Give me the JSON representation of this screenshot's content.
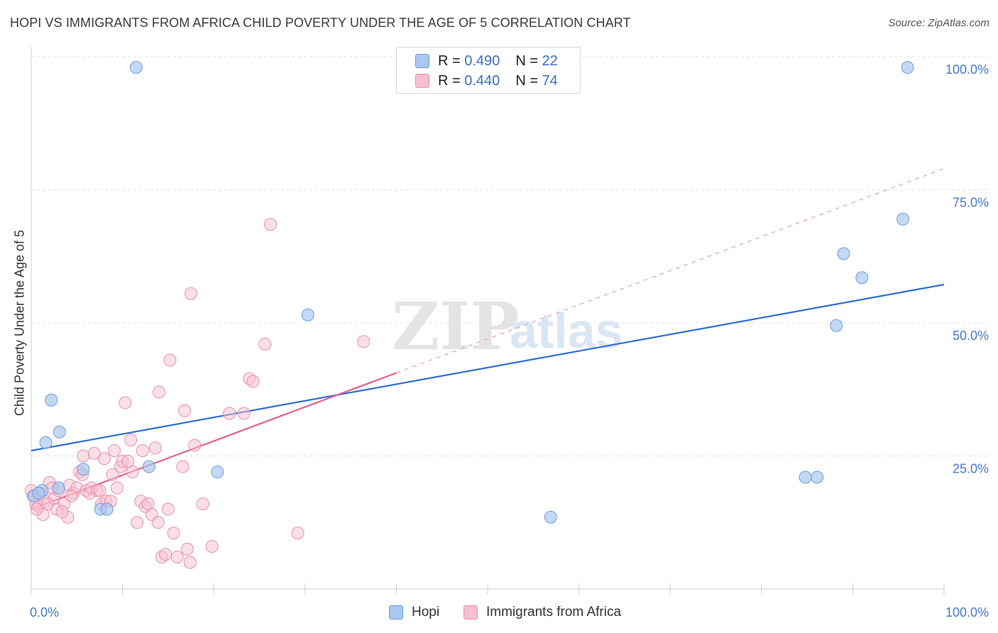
{
  "title": "HOPI VS IMMIGRANTS FROM AFRICA CHILD POVERTY UNDER THE AGE OF 5 CORRELATION CHART",
  "source": "Source: ZipAtlas.com",
  "watermark": {
    "zip": "ZIP",
    "atlas": "atlas"
  },
  "legend_top": {
    "hopi": {
      "r_label": "R = ",
      "r_value": "0.490",
      "n_label": "N = ",
      "n_value": "22"
    },
    "africa": {
      "r_label": "R = ",
      "r_value": "0.440",
      "n_label": "N = ",
      "n_value": "74"
    }
  },
  "legend_bottom": {
    "hopi": "Hopi",
    "africa": "Immigrants from Africa"
  },
  "colors": {
    "hopi_fill": "#a9c8ef",
    "hopi_stroke": "#6e9ed8",
    "hopi_line": "#2f6fcf",
    "africa_fill": "#f7bfd0",
    "africa_stroke": "#e98fad",
    "africa_line": "#e4608e",
    "axis_text": "#4a7cc7",
    "grid": "#e3e3e3"
  },
  "chart_data": {
    "type": "scatter",
    "title": "HOPI VS IMMIGRANTS FROM AFRICA CHILD POVERTY UNDER THE AGE OF 5 CORRELATION CHART",
    "xlabel": "",
    "ylabel": "Child Poverty Under the Age of 5",
    "xlim": [
      0,
      100
    ],
    "ylim": [
      0,
      100
    ],
    "x_tick_labels": [
      "0.0%",
      "100.0%"
    ],
    "y_ticks": [
      25,
      50,
      75,
      100
    ],
    "y_tick_labels": [
      "25.0%",
      "50.0%",
      "75.0%",
      "100.0%"
    ],
    "grid": true,
    "legend_position": "top-center",
    "series": [
      {
        "name": "Hopi",
        "r": 0.49,
        "n": 22,
        "trend": {
          "x0": 0,
          "y0": 26.0,
          "x1": 100,
          "y1": 57.2,
          "style": "solid"
        },
        "points": [
          [
            0.3,
            17.5
          ],
          [
            1.2,
            18.5
          ],
          [
            1.6,
            27.5
          ],
          [
            2.2,
            35.5
          ],
          [
            3.1,
            29.5
          ],
          [
            3.0,
            19.0
          ],
          [
            5.7,
            22.5
          ],
          [
            7.6,
            15.0
          ],
          [
            8.3,
            15.0
          ],
          [
            11.5,
            98.0
          ],
          [
            12.9,
            23.0
          ],
          [
            20.4,
            22.0
          ],
          [
            30.3,
            51.5
          ],
          [
            56.9,
            13.5
          ],
          [
            84.8,
            21.0
          ],
          [
            86.1,
            21.0
          ],
          [
            88.2,
            49.5
          ],
          [
            89.0,
            63.0
          ],
          [
            91.0,
            58.5
          ],
          [
            95.5,
            69.5
          ],
          [
            96.0,
            98.0
          ],
          [
            0.8,
            18.0
          ]
        ]
      },
      {
        "name": "Immigrants from Africa",
        "r": 0.44,
        "n": 74,
        "trend": {
          "x0": 0,
          "y0": 15.0,
          "x1": 40,
          "y1": 40.6,
          "style": "solid",
          "extend_to_x": 100,
          "extend_to_y": 79.0,
          "extend_style": "dashed"
        },
        "points": [
          [
            0.2,
            17.5
          ],
          [
            0.5,
            16.0
          ],
          [
            0.8,
            15.5
          ],
          [
            1.0,
            18.0
          ],
          [
            1.3,
            14.0
          ],
          [
            1.5,
            16.5
          ],
          [
            2.0,
            20.0
          ],
          [
            2.5,
            17.0
          ],
          [
            2.8,
            15.0
          ],
          [
            3.0,
            18.5
          ],
          [
            3.6,
            16.0
          ],
          [
            4.0,
            13.5
          ],
          [
            4.2,
            19.5
          ],
          [
            4.6,
            18.0
          ],
          [
            5.0,
            19.0
          ],
          [
            5.3,
            22.0
          ],
          [
            5.6,
            21.5
          ],
          [
            5.7,
            25.0
          ],
          [
            6.0,
            18.5
          ],
          [
            6.4,
            18.0
          ],
          [
            6.6,
            19.0
          ],
          [
            6.9,
            25.5
          ],
          [
            7.2,
            18.5
          ],
          [
            7.5,
            18.5
          ],
          [
            7.7,
            16.0
          ],
          [
            8.0,
            24.5
          ],
          [
            8.2,
            16.5
          ],
          [
            8.7,
            16.5
          ],
          [
            8.9,
            21.5
          ],
          [
            9.1,
            26.0
          ],
          [
            9.4,
            19.0
          ],
          [
            9.8,
            23.0
          ],
          [
            10.0,
            24.0
          ],
          [
            10.3,
            35.0
          ],
          [
            10.6,
            24.0
          ],
          [
            10.9,
            28.0
          ],
          [
            11.1,
            22.0
          ],
          [
            11.6,
            12.5
          ],
          [
            12.0,
            16.5
          ],
          [
            12.2,
            26.0
          ],
          [
            12.5,
            15.5
          ],
          [
            12.8,
            16.0
          ],
          [
            13.2,
            14.0
          ],
          [
            13.6,
            26.5
          ],
          [
            13.9,
            12.5
          ],
          [
            14.0,
            37.0
          ],
          [
            14.3,
            6.0
          ],
          [
            14.7,
            6.5
          ],
          [
            15.0,
            15.0
          ],
          [
            15.2,
            43.0
          ],
          [
            15.6,
            10.5
          ],
          [
            16.0,
            6.0
          ],
          [
            16.6,
            23.0
          ],
          [
            16.8,
            33.5
          ],
          [
            17.1,
            7.5
          ],
          [
            17.4,
            5.0
          ],
          [
            17.5,
            55.5
          ],
          [
            17.9,
            27.0
          ],
          [
            18.8,
            16.0
          ],
          [
            19.8,
            8.0
          ],
          [
            21.7,
            33.0
          ],
          [
            23.3,
            33.0
          ],
          [
            23.9,
            39.5
          ],
          [
            24.3,
            39.0
          ],
          [
            25.6,
            46.0
          ],
          [
            26.2,
            68.5
          ],
          [
            29.2,
            10.5
          ],
          [
            36.4,
            46.5
          ],
          [
            0.0,
            18.5
          ],
          [
            0.6,
            15.0
          ],
          [
            1.8,
            16.0
          ],
          [
            2.3,
            19.0
          ],
          [
            3.4,
            14.5
          ],
          [
            4.4,
            17.5
          ]
        ]
      }
    ]
  }
}
